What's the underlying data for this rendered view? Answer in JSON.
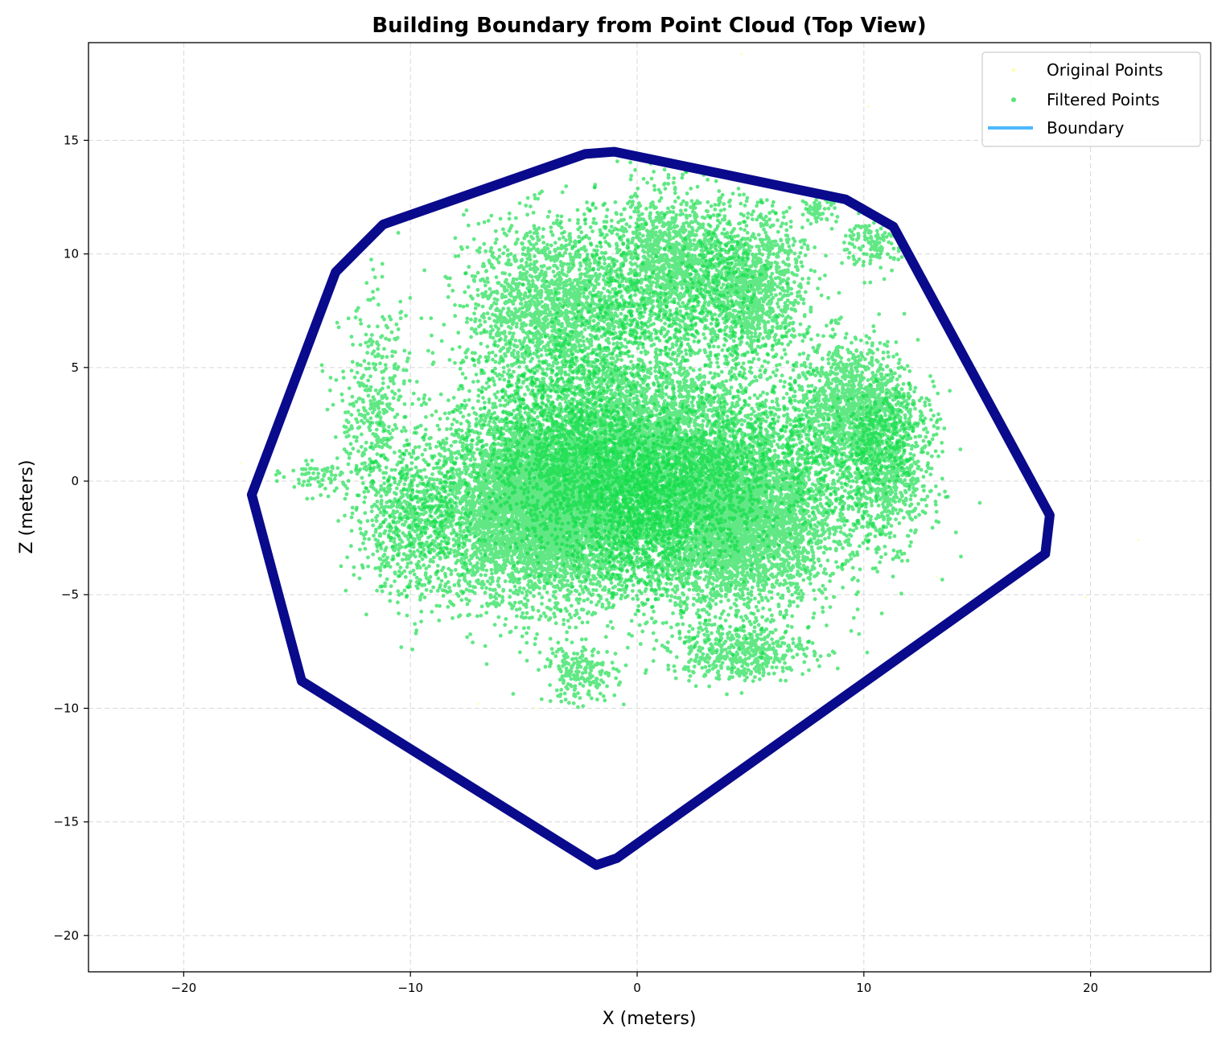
{
  "chart_data": {
    "type": "scatter",
    "title": "Building Boundary from Point Cloud (Top View)",
    "xlabel": "X (meters)",
    "ylabel": "Z (meters)",
    "xlim": [
      -24.2,
      25.3
    ],
    "ylim": [
      -21.6,
      19.3
    ],
    "xticks": [
      -20,
      -10,
      0,
      10,
      20
    ],
    "yticks": [
      -20,
      -15,
      -10,
      -5,
      0,
      5,
      10,
      15
    ],
    "xtick_labels": [
      "−20",
      "−10",
      "0",
      "10",
      "20"
    ],
    "ytick_labels": [
      "−20",
      "−15",
      "−10",
      "−5",
      "0",
      "5",
      "10",
      "15"
    ],
    "grid": true,
    "legend_position": "top-right",
    "legend": [
      "Original Points",
      "Filtered Points",
      "Boundary"
    ],
    "colors": {
      "original": "#ffff99",
      "filtered": "#0ddc44",
      "boundary": "#0a0a8c",
      "boundary_legend": "#4db8ff"
    },
    "series": [
      {
        "name": "Original Points",
        "style": "sparse faint points",
        "points": [
          [
            4.6,
            18.8
          ],
          [
            10.2,
            16.5
          ],
          [
            -17.5,
            0.8
          ],
          [
            22.1,
            -2.6
          ],
          [
            19.8,
            -5.1
          ],
          [
            13.2,
            -4.2
          ],
          [
            -7.0,
            -9.8
          ],
          [
            -4.5,
            -10.0
          ]
        ]
      },
      {
        "name": "Filtered Points",
        "style": "dense cloud",
        "clusters": [
          {
            "cx": -4.0,
            "cz": -1.0,
            "sx": 3.2,
            "sz": 2.6,
            "n": 9000
          },
          {
            "cx": 4.0,
            "cz": -1.5,
            "sx": 3.0,
            "sz": 2.5,
            "n": 9000
          },
          {
            "cx": 0.0,
            "cz": 1.5,
            "sx": 4.0,
            "sz": 3.0,
            "n": 5000
          },
          {
            "cx": -3.5,
            "cz": 7.5,
            "sx": 2.5,
            "sz": 2.5,
            "n": 2000
          },
          {
            "cx": 1.5,
            "cz": 9.5,
            "sx": 2.0,
            "sz": 2.0,
            "n": 1500
          },
          {
            "cx": 5.0,
            "cz": 8.5,
            "sx": 1.5,
            "sz": 2.0,
            "n": 1200
          },
          {
            "cx": 9.5,
            "cz": 3.0,
            "sx": 1.8,
            "sz": 2.0,
            "n": 1500
          },
          {
            "cx": 11.0,
            "cz": 0.5,
            "sx": 1.2,
            "sz": 2.0,
            "n": 800
          },
          {
            "cx": -10.0,
            "cz": -2.0,
            "sx": 1.5,
            "sz": 2.0,
            "n": 600
          },
          {
            "cx": -11.5,
            "cz": 3.0,
            "sx": 1.0,
            "sz": 3.0,
            "n": 400
          },
          {
            "cx": -2.5,
            "cz": -8.5,
            "sx": 1.0,
            "sz": 0.8,
            "n": 200
          },
          {
            "cx": 4.5,
            "cz": -7.5,
            "sx": 2.0,
            "sz": 0.8,
            "n": 500
          },
          {
            "cx": 10.5,
            "cz": 10.5,
            "sx": 0.8,
            "sz": 0.8,
            "n": 150
          },
          {
            "cx": 8.0,
            "cz": 12.0,
            "sx": 0.5,
            "sz": 0.4,
            "n": 60
          },
          {
            "cx": -14.0,
            "cz": 0.2,
            "sx": 1.0,
            "sz": 0.5,
            "n": 80
          }
        ]
      },
      {
        "name": "Boundary",
        "style": "thick polygon outline",
        "vertices": [
          [
            -17.0,
            -0.6
          ],
          [
            -13.3,
            9.2
          ],
          [
            -11.2,
            11.3
          ],
          [
            -2.3,
            14.4
          ],
          [
            -1.0,
            14.5
          ],
          [
            9.2,
            12.4
          ],
          [
            11.3,
            11.2
          ],
          [
            18.2,
            -1.5
          ],
          [
            18.0,
            -3.2
          ],
          [
            -0.9,
            -16.6
          ],
          [
            -1.8,
            -16.9
          ],
          [
            -14.8,
            -8.8
          ]
        ]
      }
    ]
  }
}
